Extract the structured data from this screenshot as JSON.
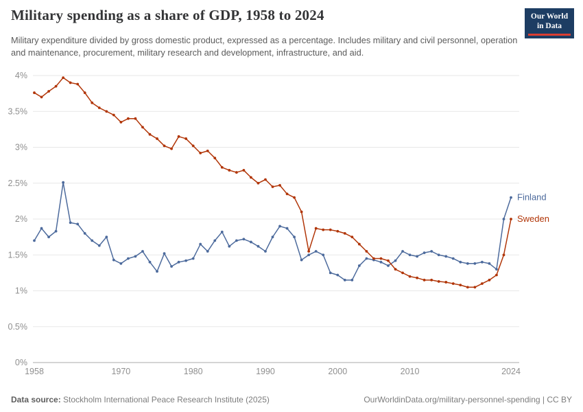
{
  "header": {
    "title": "Military spending as a share of GDP, 1958 to 2024",
    "subtitle": "Military expenditure divided by gross domestic product, expressed as a percentage. Includes military and civil personnel, operation and maintenance, procurement, military research and development, infrastructure, and aid.",
    "logo": {
      "line1": "Our World",
      "line2": "in Data",
      "bg": "#1d3d63",
      "accent": "#dc3e32"
    }
  },
  "chart_data": {
    "type": "line",
    "title": "Military spending as a share of GDP, 1958 to 2024",
    "xlabel": "",
    "ylabel": "",
    "ylim": [
      0,
      4
    ],
    "grid": true,
    "legend_position": "end-of-line",
    "yticks": [
      0,
      0.5,
      1,
      1.5,
      2,
      2.5,
      3,
      3.5,
      4
    ],
    "ytick_labels": [
      "0%",
      "0.5%",
      "1%",
      "1.5%",
      "2%",
      "2.5%",
      "3%",
      "3.5%",
      "4%"
    ],
    "xticks": [
      1958,
      1970,
      1980,
      1990,
      2000,
      2010,
      2024
    ],
    "x": [
      1958,
      1959,
      1960,
      1961,
      1962,
      1963,
      1964,
      1965,
      1966,
      1967,
      1968,
      1969,
      1970,
      1971,
      1972,
      1973,
      1974,
      1975,
      1976,
      1977,
      1978,
      1979,
      1980,
      1981,
      1982,
      1983,
      1984,
      1985,
      1986,
      1987,
      1988,
      1989,
      1990,
      1991,
      1992,
      1993,
      1994,
      1995,
      1996,
      1997,
      1998,
      1999,
      2000,
      2001,
      2002,
      2003,
      2004,
      2005,
      2006,
      2007,
      2008,
      2009,
      2010,
      2011,
      2012,
      2013,
      2014,
      2015,
      2016,
      2017,
      2018,
      2019,
      2020,
      2021,
      2022,
      2023,
      2024
    ],
    "series": [
      {
        "name": "Finland",
        "color": "#4c6a9c",
        "values": [
          1.7,
          1.87,
          1.75,
          1.83,
          2.51,
          1.95,
          1.93,
          1.8,
          1.7,
          1.63,
          1.75,
          1.43,
          1.38,
          1.45,
          1.48,
          1.55,
          1.4,
          1.27,
          1.52,
          1.34,
          1.4,
          1.42,
          1.45,
          1.65,
          1.55,
          1.7,
          1.82,
          1.62,
          1.7,
          1.72,
          1.68,
          1.62,
          1.55,
          1.75,
          1.9,
          1.87,
          1.75,
          1.43,
          1.5,
          1.55,
          1.5,
          1.25,
          1.22,
          1.15,
          1.15,
          1.35,
          1.45,
          1.43,
          1.4,
          1.35,
          1.42,
          1.55,
          1.5,
          1.48,
          1.53,
          1.55,
          1.5,
          1.48,
          1.45,
          1.4,
          1.38,
          1.38,
          1.4,
          1.38,
          1.3,
          2.0,
          2.3
        ]
      },
      {
        "name": "Sweden",
        "color": "#b13507",
        "values": [
          3.76,
          3.7,
          3.78,
          3.85,
          3.97,
          3.9,
          3.88,
          3.76,
          3.62,
          3.55,
          3.5,
          3.45,
          3.35,
          3.4,
          3.4,
          3.28,
          3.18,
          3.12,
          3.02,
          2.98,
          3.15,
          3.12,
          3.02,
          2.92,
          2.95,
          2.85,
          2.72,
          2.68,
          2.65,
          2.68,
          2.58,
          2.5,
          2.55,
          2.45,
          2.47,
          2.35,
          2.3,
          2.1,
          1.55,
          1.87,
          1.85,
          1.85,
          1.83,
          1.8,
          1.75,
          1.65,
          1.55,
          1.45,
          1.45,
          1.42,
          1.3,
          1.25,
          1.2,
          1.18,
          1.15,
          1.15,
          1.13,
          1.12,
          1.1,
          1.08,
          1.05,
          1.05,
          1.1,
          1.15,
          1.22,
          1.5,
          2.0
        ]
      }
    ]
  },
  "footer": {
    "source_label": "Data source:",
    "source_text": " Stockholm International Peace Research Institute (2025)",
    "credit": "OurWorldinData.org/military-personnel-spending | CC BY"
  }
}
